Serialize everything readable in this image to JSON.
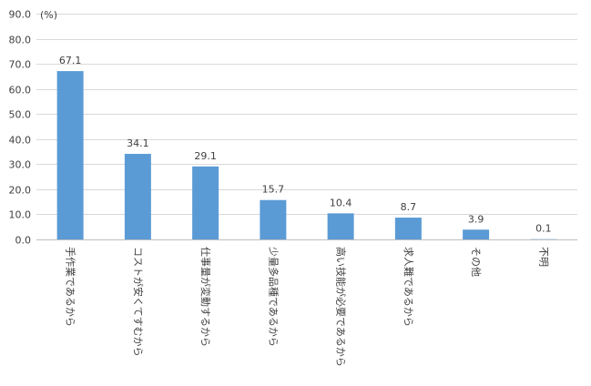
{
  "chart_data": {
    "type": "bar",
    "unit": "(%)",
    "ylim": [
      0,
      90
    ],
    "ytick_labels": [
      "0.0",
      "10.0",
      "20.0",
      "30.0",
      "40.0",
      "50.0",
      "60.0",
      "70.0",
      "80.0",
      "90.0"
    ],
    "grid": true,
    "bar_color": "#5b9bd5",
    "categories": [
      "手作業であるから",
      "コストが安くてすむから",
      "仕事量が変動するから",
      "少量多品種であるから",
      "高い技能が必要であるから",
      "求人難であるから",
      "その他",
      "不明"
    ],
    "values": [
      67.1,
      34.1,
      29.1,
      15.7,
      10.4,
      8.7,
      3.9,
      0.1
    ],
    "value_labels": [
      "67.1",
      "34.1",
      "29.1",
      "15.7",
      "10.4",
      "8.7",
      "3.9",
      "0.1"
    ]
  }
}
